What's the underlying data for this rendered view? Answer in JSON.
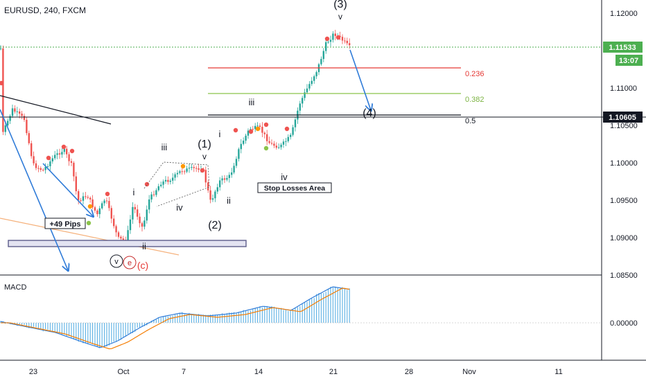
{
  "header": {
    "symbol_title": "EURUSD, 240, FXCM"
  },
  "price_axis": {
    "ticks": [
      "1.12000",
      "1.11000",
      "1.10500",
      "1.10000",
      "1.09500",
      "1.09000",
      "1.08500"
    ],
    "current_price": "1.11533",
    "countdown": "13:07",
    "level_label": "1.10605"
  },
  "macd": {
    "title": "MACD",
    "zero_label": "0.00000"
  },
  "time_axis": {
    "ticks": [
      "23",
      "Oct",
      "7",
      "14",
      "21",
      "28",
      "Nov",
      "11"
    ]
  },
  "fib_levels": [
    {
      "label": "0.236",
      "color": "#e53935"
    },
    {
      "label": "0.382",
      "color": "#8bc34a"
    },
    {
      "label": "0.5",
      "color": "#131722"
    }
  ],
  "wave_labels": {
    "w3_top": "(3)",
    "w3_v": "v",
    "w4": "(4)",
    "w1": "(1)",
    "w1_v": "v",
    "w2": "(2)",
    "sub_i_1": "i",
    "sub_ii_1": "ii",
    "sub_iii_1": "iii",
    "sub_iv_1": "iv",
    "sub_i_2": "i",
    "sub_ii_2": "ii",
    "sub_iii_2": "iii",
    "sub_iv_2": "iv",
    "circ_v": "v",
    "circ_e": "e",
    "wave_c": "(c)"
  },
  "annotations": {
    "pips": "+49 Pips",
    "stop_losses": "Stop Losses Area"
  },
  "colors": {
    "up": "#26a69a",
    "down": "#ef5350",
    "arrow": "#2f7bd8",
    "price_tag": "#4caf50",
    "macd_hist": "#4aa8e0",
    "signal": "#f57c00",
    "support_box": "#9e9ecf"
  }
}
